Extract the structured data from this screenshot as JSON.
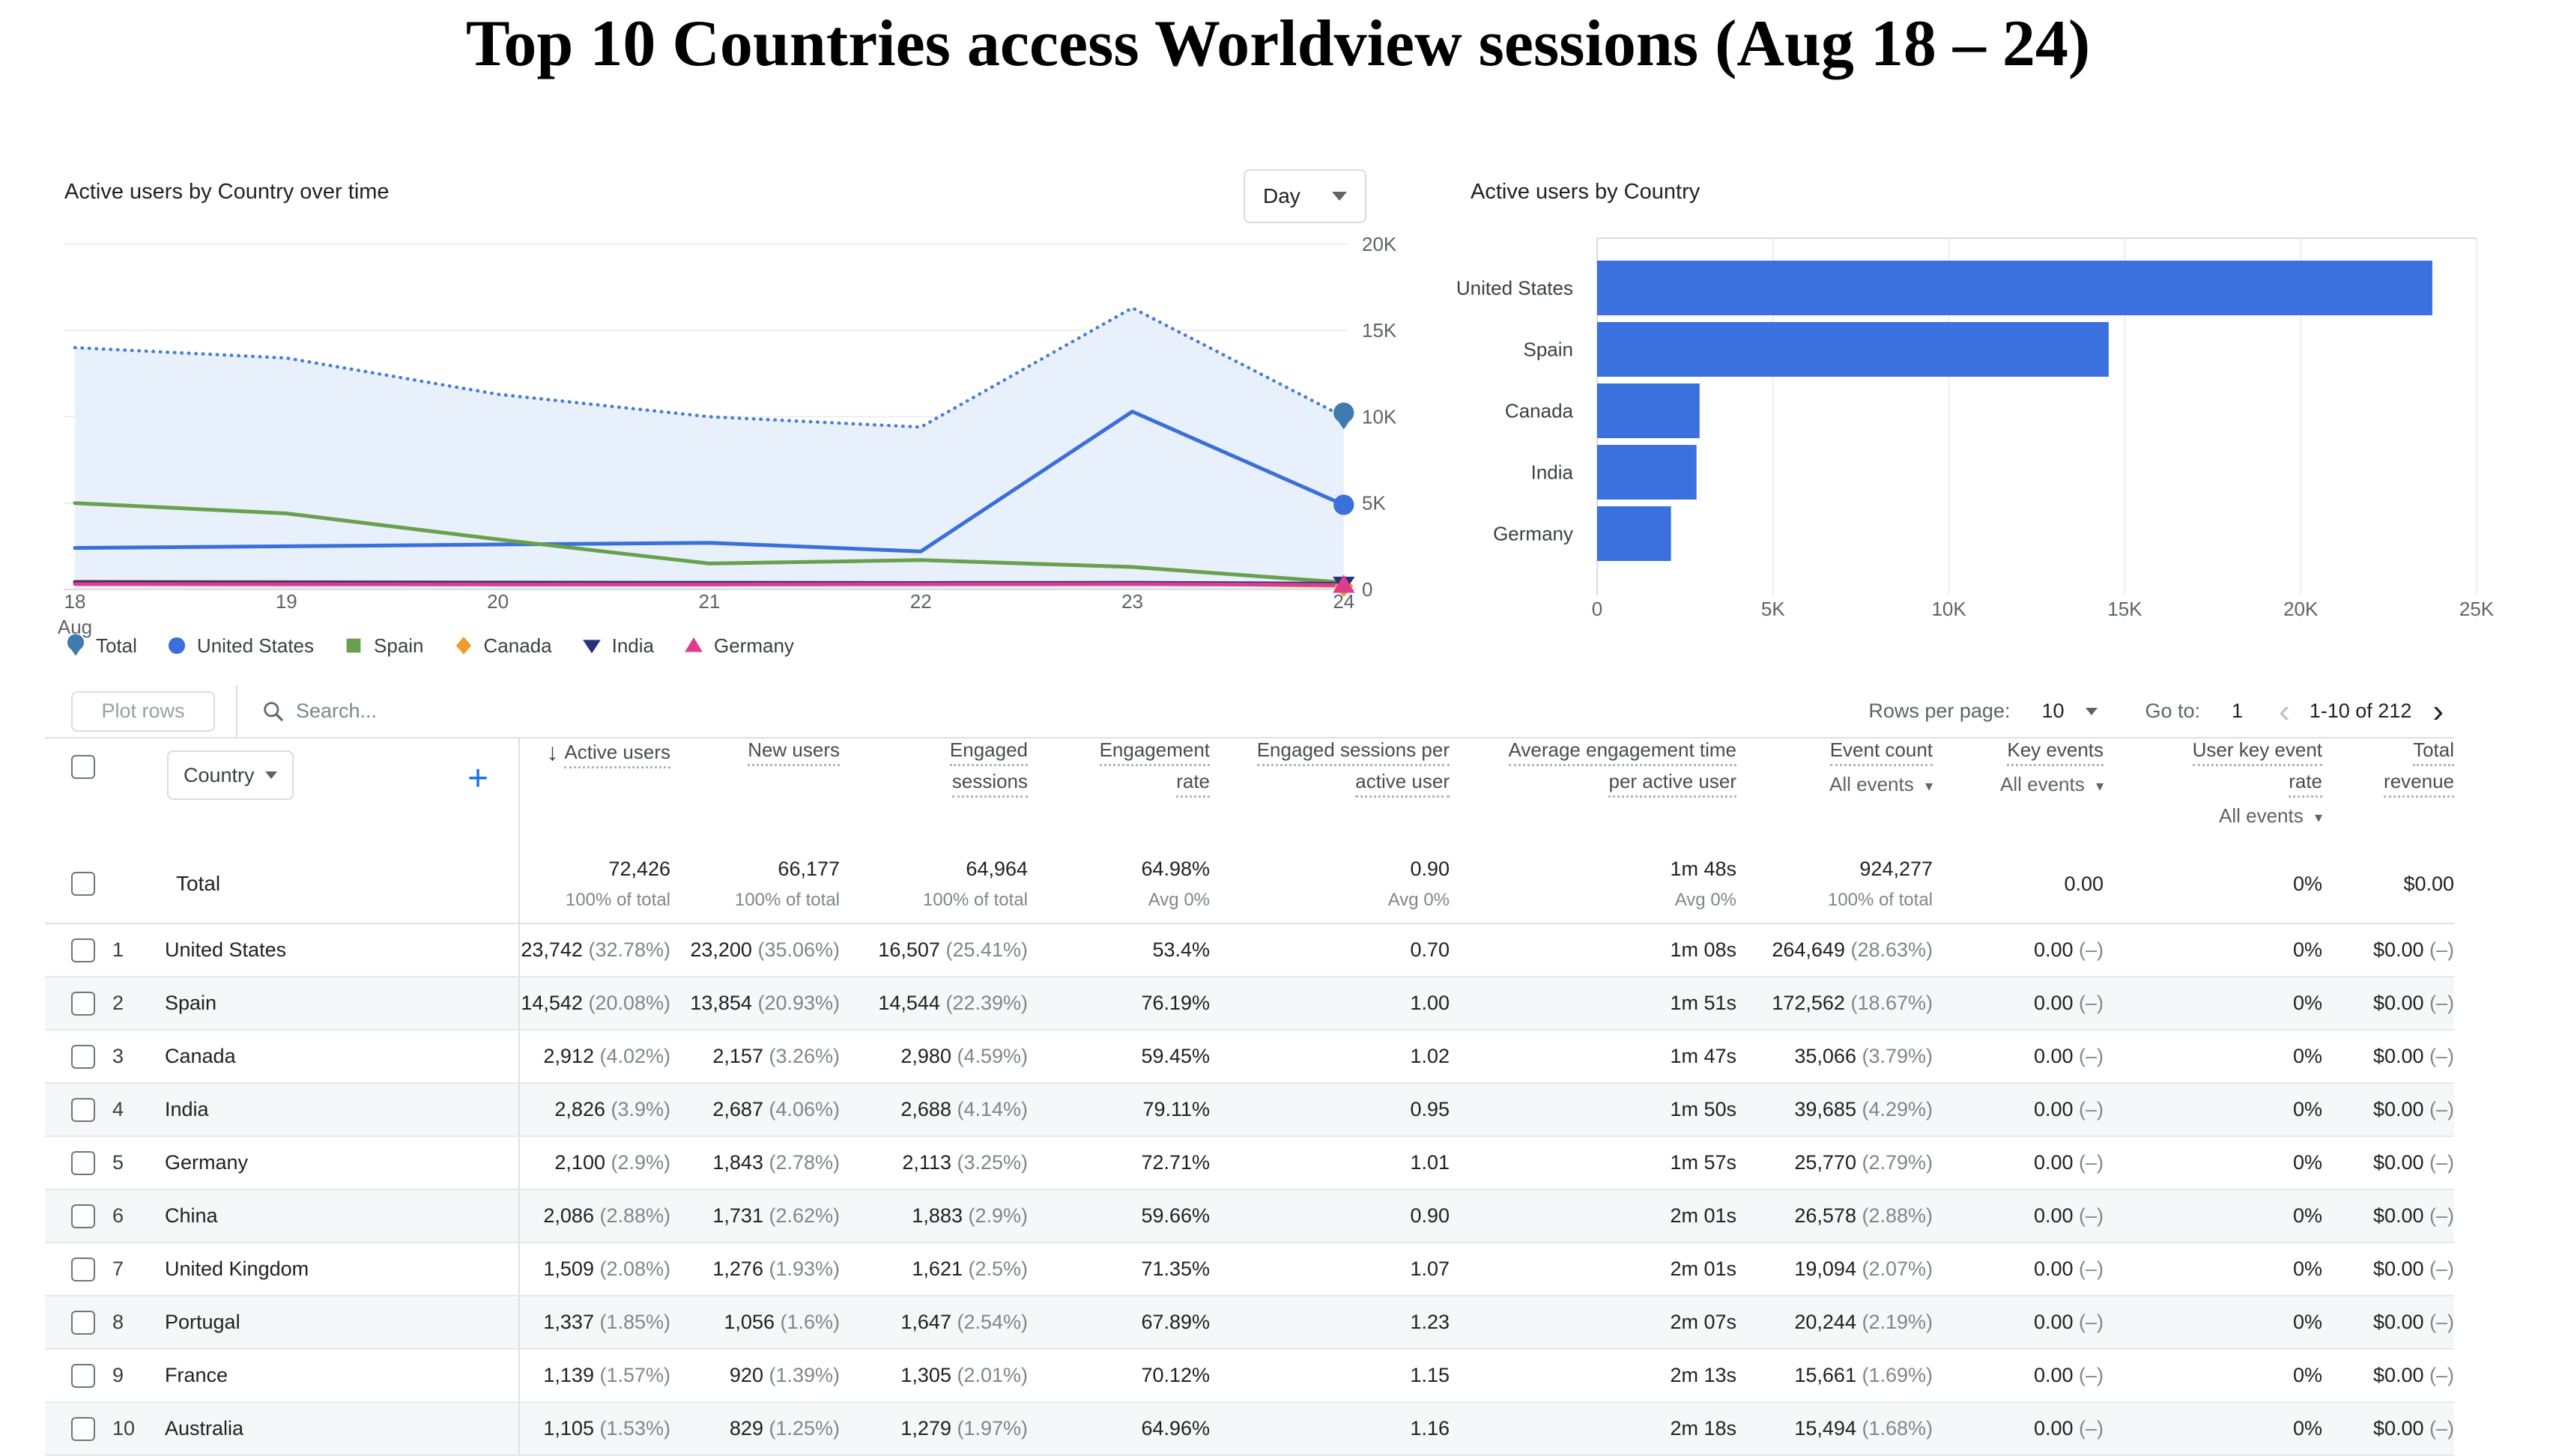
{
  "page_title": "Top 10 Countries access Worldview sessions (Aug 18 – 24)",
  "chart_data": [
    {
      "type": "line",
      "title": "Active users by Country over time",
      "interval": "Day",
      "x": [
        "18",
        "19",
        "20",
        "21",
        "22",
        "23",
        "24"
      ],
      "x_axis_sub": "Aug",
      "ylim": [
        0,
        20000
      ],
      "y_ticks": [
        0,
        5000,
        10000,
        15000,
        20000
      ],
      "y_tick_labels": [
        "0",
        "5K",
        "10K",
        "15K",
        "20K"
      ],
      "grid_color": "#ebedef",
      "axis_color": "#dadce0",
      "legend_position": "bottom",
      "series": [
        {
          "name": "Total",
          "color": "#3f7bae",
          "line_color": "#4a7dd4",
          "style": "dotted",
          "marker": "pin",
          "fill": "#e8f1fb",
          "end_marker": true,
          "values": [
            14000,
            13400,
            11300,
            10000,
            9400,
            16300,
            10000
          ]
        },
        {
          "name": "United States",
          "color": "#3b6fd9",
          "line_color": "#3b6fd9",
          "style": "solid",
          "marker": "circle",
          "end_marker": true,
          "values": [
            2400,
            2500,
            2600,
            2700,
            2200,
            10300,
            4900
          ]
        },
        {
          "name": "Spain",
          "color": "#6aa04d",
          "line_color": "#6aa04d",
          "style": "solid",
          "marker": "square",
          "end_marker": false,
          "values": [
            5000,
            4400,
            2900,
            1500,
            1700,
            1300,
            400
          ]
        },
        {
          "name": "Canada",
          "color": "#ef9b2d",
          "line_color": "#ef9b2d",
          "style": "solid",
          "marker": "diamond",
          "end_marker": true,
          "values": [
            450,
            430,
            400,
            380,
            370,
            380,
            200
          ]
        },
        {
          "name": "India",
          "color": "#27317e",
          "line_color": "#27317e",
          "style": "solid",
          "marker": "triangle-down",
          "end_marker": true,
          "values": [
            420,
            400,
            390,
            380,
            370,
            380,
            330
          ]
        },
        {
          "name": "Germany",
          "color": "#de3d8d",
          "line_color": "#de3d8d",
          "style": "solid",
          "marker": "triangle-up",
          "end_marker": true,
          "values": [
            310,
            300,
            290,
            290,
            300,
            310,
            260
          ]
        }
      ]
    },
    {
      "type": "bar",
      "title": "Active users by Country",
      "orientation": "horizontal",
      "categories": [
        "United States",
        "Spain",
        "Canada",
        "India",
        "Germany"
      ],
      "values": [
        23742,
        14542,
        2912,
        2826,
        2100
      ],
      "bar_color": "#3b71de",
      "xlim": [
        0,
        25000
      ],
      "x_ticks": [
        0,
        5000,
        10000,
        15000,
        20000,
        25000
      ],
      "x_tick_labels": [
        "0",
        "5K",
        "10K",
        "15K",
        "20K",
        "25K"
      ]
    }
  ],
  "controls": {
    "plot_rows": "Plot rows",
    "search_placeholder": "Search...",
    "rows_per_page_label": "Rows per page:",
    "rows_per_page_value": "10",
    "go_to_label": "Go to:",
    "go_to_value": "1",
    "pagination": "1-10 of 212",
    "prev_icon": "‹",
    "next_icon": "›"
  },
  "table": {
    "dimension_select": "Country",
    "add_column_icon": "+",
    "sort_icon": "↓",
    "columns": [
      {
        "id": "active_users",
        "lines": [
          "Active users"
        ],
        "sorted": true
      },
      {
        "id": "new_users",
        "lines": [
          "New users"
        ]
      },
      {
        "id": "engaged_sessions",
        "lines": [
          "Engaged",
          "sessions"
        ]
      },
      {
        "id": "engagement_rate",
        "lines": [
          "Engagement",
          "rate"
        ]
      },
      {
        "id": "engaged_sessions_per_active_user",
        "lines": [
          "Engaged sessions per",
          "active user"
        ]
      },
      {
        "id": "average_engagement_time_per_active_user",
        "lines": [
          "Average engagement time",
          "per active user"
        ]
      },
      {
        "id": "event_count",
        "lines": [
          "Event count"
        ],
        "dropdown": "All events"
      },
      {
        "id": "key_events",
        "lines": [
          "Key events"
        ],
        "dropdown": "All events"
      },
      {
        "id": "user_key_event_rate",
        "lines": [
          "User key event",
          "rate"
        ],
        "dropdown": "All events"
      },
      {
        "id": "total_revenue",
        "lines": [
          "Total",
          "revenue"
        ]
      }
    ],
    "total_row": {
      "label": "Total",
      "cells": [
        {
          "v": "72,426",
          "sub": "100% of total"
        },
        {
          "v": "66,177",
          "sub": "100% of total"
        },
        {
          "v": "64,964",
          "sub": "100% of total"
        },
        {
          "v": "64.98%",
          "sub": "Avg 0%"
        },
        {
          "v": "0.90",
          "sub": "Avg 0%"
        },
        {
          "v": "1m 48s",
          "sub": "Avg 0%"
        },
        {
          "v": "924,277",
          "sub": "100% of total"
        },
        {
          "v": "0.00",
          "sub": ""
        },
        {
          "v": "0%",
          "sub": ""
        },
        {
          "v": "$0.00",
          "sub": ""
        }
      ]
    },
    "rows": [
      {
        "rank": "1",
        "country": "United States",
        "cells": [
          [
            "23,742",
            "(32.78%)"
          ],
          [
            "23,200",
            "(35.06%)"
          ],
          [
            "16,507",
            "(25.41%)"
          ],
          [
            "53.4%",
            ""
          ],
          [
            "0.70",
            ""
          ],
          [
            "1m 08s",
            ""
          ],
          [
            "264,649",
            "(28.63%)"
          ],
          [
            "0.00",
            "(–)"
          ],
          [
            "0%",
            ""
          ],
          [
            "$0.00",
            "(–)"
          ]
        ]
      },
      {
        "rank": "2",
        "country": "Spain",
        "cells": [
          [
            "14,542",
            "(20.08%)"
          ],
          [
            "13,854",
            "(20.93%)"
          ],
          [
            "14,544",
            "(22.39%)"
          ],
          [
            "76.19%",
            ""
          ],
          [
            "1.00",
            ""
          ],
          [
            "1m 51s",
            ""
          ],
          [
            "172,562",
            "(18.67%)"
          ],
          [
            "0.00",
            "(–)"
          ],
          [
            "0%",
            ""
          ],
          [
            "$0.00",
            "(–)"
          ]
        ]
      },
      {
        "rank": "3",
        "country": "Canada",
        "cells": [
          [
            "2,912",
            "(4.02%)"
          ],
          [
            "2,157",
            "(3.26%)"
          ],
          [
            "2,980",
            "(4.59%)"
          ],
          [
            "59.45%",
            ""
          ],
          [
            "1.02",
            ""
          ],
          [
            "1m 47s",
            ""
          ],
          [
            "35,066",
            "(3.79%)"
          ],
          [
            "0.00",
            "(–)"
          ],
          [
            "0%",
            ""
          ],
          [
            "$0.00",
            "(–)"
          ]
        ]
      },
      {
        "rank": "4",
        "country": "India",
        "cells": [
          [
            "2,826",
            "(3.9%)"
          ],
          [
            "2,687",
            "(4.06%)"
          ],
          [
            "2,688",
            "(4.14%)"
          ],
          [
            "79.11%",
            ""
          ],
          [
            "0.95",
            ""
          ],
          [
            "1m 50s",
            ""
          ],
          [
            "39,685",
            "(4.29%)"
          ],
          [
            "0.00",
            "(–)"
          ],
          [
            "0%",
            ""
          ],
          [
            "$0.00",
            "(–)"
          ]
        ]
      },
      {
        "rank": "5",
        "country": "Germany",
        "cells": [
          [
            "2,100",
            "(2.9%)"
          ],
          [
            "1,843",
            "(2.78%)"
          ],
          [
            "2,113",
            "(3.25%)"
          ],
          [
            "72.71%",
            ""
          ],
          [
            "1.01",
            ""
          ],
          [
            "1m 57s",
            ""
          ],
          [
            "25,770",
            "(2.79%)"
          ],
          [
            "0.00",
            "(–)"
          ],
          [
            "0%",
            ""
          ],
          [
            "$0.00",
            "(–)"
          ]
        ]
      },
      {
        "rank": "6",
        "country": "China",
        "cells": [
          [
            "2,086",
            "(2.88%)"
          ],
          [
            "1,731",
            "(2.62%)"
          ],
          [
            "1,883",
            "(2.9%)"
          ],
          [
            "59.66%",
            ""
          ],
          [
            "0.90",
            ""
          ],
          [
            "2m 01s",
            ""
          ],
          [
            "26,578",
            "(2.88%)"
          ],
          [
            "0.00",
            "(–)"
          ],
          [
            "0%",
            ""
          ],
          [
            "$0.00",
            "(–)"
          ]
        ]
      },
      {
        "rank": "7",
        "country": "United Kingdom",
        "cells": [
          [
            "1,509",
            "(2.08%)"
          ],
          [
            "1,276",
            "(1.93%)"
          ],
          [
            "1,621",
            "(2.5%)"
          ],
          [
            "71.35%",
            ""
          ],
          [
            "1.07",
            ""
          ],
          [
            "2m 01s",
            ""
          ],
          [
            "19,094",
            "(2.07%)"
          ],
          [
            "0.00",
            "(–)"
          ],
          [
            "0%",
            ""
          ],
          [
            "$0.00",
            "(–)"
          ]
        ]
      },
      {
        "rank": "8",
        "country": "Portugal",
        "cells": [
          [
            "1,337",
            "(1.85%)"
          ],
          [
            "1,056",
            "(1.6%)"
          ],
          [
            "1,647",
            "(2.54%)"
          ],
          [
            "67.89%",
            ""
          ],
          [
            "1.23",
            ""
          ],
          [
            "2m 07s",
            ""
          ],
          [
            "20,244",
            "(2.19%)"
          ],
          [
            "0.00",
            "(–)"
          ],
          [
            "0%",
            ""
          ],
          [
            "$0.00",
            "(–)"
          ]
        ]
      },
      {
        "rank": "9",
        "country": "France",
        "cells": [
          [
            "1,139",
            "(1.57%)"
          ],
          [
            "920",
            "(1.39%)"
          ],
          [
            "1,305",
            "(2.01%)"
          ],
          [
            "70.12%",
            ""
          ],
          [
            "1.15",
            ""
          ],
          [
            "2m 13s",
            ""
          ],
          [
            "15,661",
            "(1.69%)"
          ],
          [
            "0.00",
            "(–)"
          ],
          [
            "0%",
            ""
          ],
          [
            "$0.00",
            "(–)"
          ]
        ]
      },
      {
        "rank": "10",
        "country": "Australia",
        "cells": [
          [
            "1,105",
            "(1.53%)"
          ],
          [
            "829",
            "(1.25%)"
          ],
          [
            "1,279",
            "(1.97%)"
          ],
          [
            "64.96%",
            ""
          ],
          [
            "1.16",
            ""
          ],
          [
            "2m 18s",
            ""
          ],
          [
            "15,494",
            "(1.68%)"
          ],
          [
            "0.00",
            "(–)"
          ],
          [
            "0%",
            ""
          ],
          [
            "$0.00",
            "(–)"
          ]
        ]
      }
    ]
  }
}
